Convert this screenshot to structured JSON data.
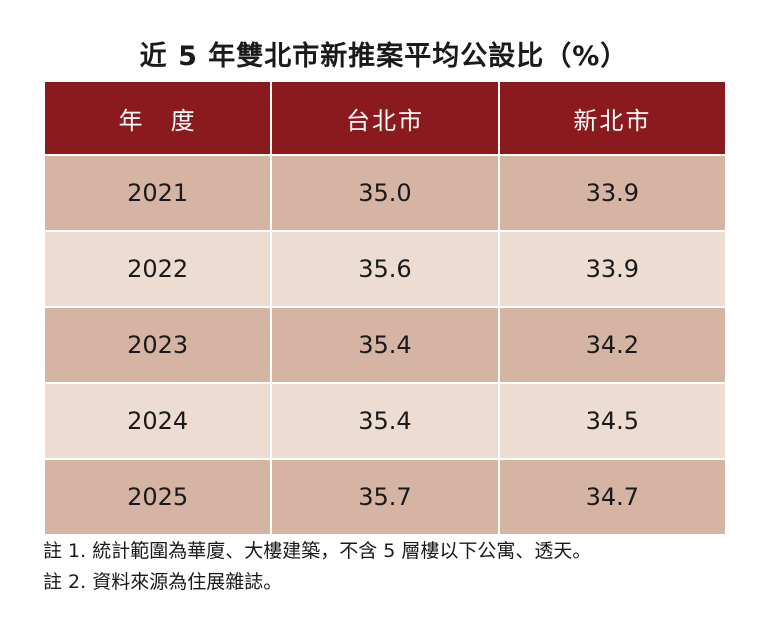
{
  "chart_data": {
    "type": "table",
    "title": "近 5 年雙北市新推案平均公設比（%）",
    "columns": [
      "年　度",
      "台北市",
      "新北市"
    ],
    "rows": [
      [
        "2021",
        "35.0",
        "33.9"
      ],
      [
        "2022",
        "35.6",
        "33.9"
      ],
      [
        "2023",
        "35.4",
        "34.2"
      ],
      [
        "2024",
        "35.4",
        "34.5"
      ],
      [
        "2025",
        "35.7",
        "34.7"
      ]
    ],
    "colors": {
      "header": "#8b1a1f",
      "row_dark": "#d6b4a4",
      "row_light": "#ecdcd2"
    }
  },
  "notes": [
    "註 1. 統計範圍為華廈、大樓建築，不含 5 層樓以下公寓、透天。",
    "註 2. 資料來源為住展雜誌。"
  ]
}
